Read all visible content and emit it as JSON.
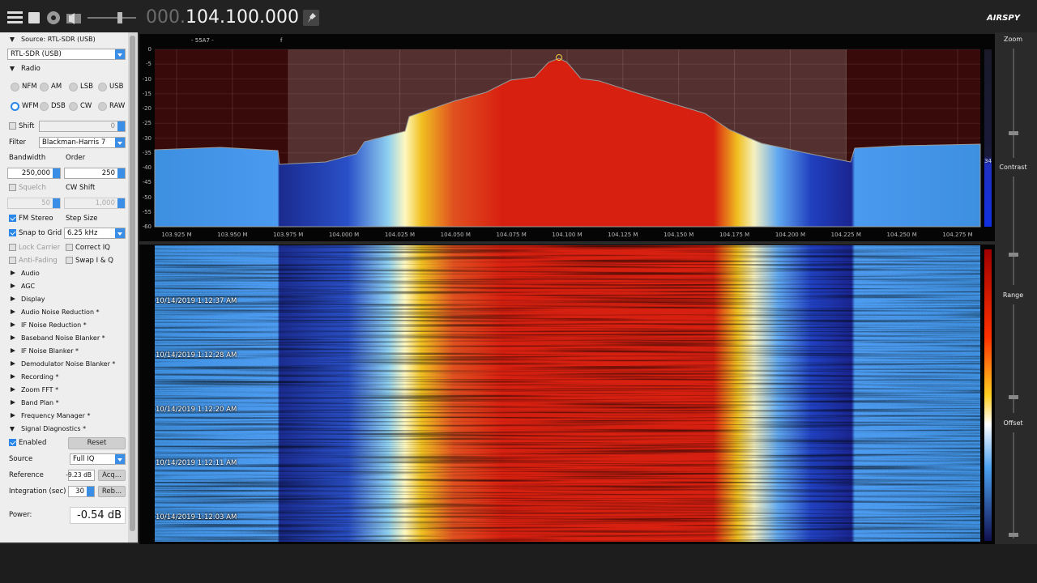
{
  "toolbar": {
    "freq_prefix": "000.",
    "freq": "104.100.000",
    "logo": "AIRSPY"
  },
  "sidebar": {
    "source_header": "Source: RTL-SDR (USB)",
    "source_select": "RTL-SDR (USB)",
    "radio_header": "Radio",
    "modes": [
      "NFM",
      "AM",
      "LSB",
      "USB",
      "WFM",
      "DSB",
      "CW",
      "RAW"
    ],
    "shift": "Shift",
    "shift_value": "0",
    "filter_label": "Filter",
    "filter": "Blackman-Harris 7",
    "bandwidth_label": "Bandwidth",
    "order_label": "Order",
    "bandwidth": "250,000",
    "order": "250",
    "squelch": "Squelch",
    "cw_shift": "CW Shift",
    "squelch_value": "50",
    "cw_shift_value": "1,000",
    "fm_stereo": "FM Stereo",
    "step_size": "Step Size",
    "snap": "Snap to Grid",
    "step": "6.25 kHz",
    "lock_carrier": "Lock Carrier",
    "correct_iq": "Correct IQ",
    "anti_fading": "Anti-Fading",
    "swap_iq": "Swap I & Q",
    "sections": [
      "Audio",
      "AGC",
      "Display",
      "Audio Noise Reduction *",
      "IF Noise Reduction *",
      "Baseband Noise Blanker *",
      "IF Noise Blanker *",
      "Demodulator Noise Blanker *",
      "Recording *",
      "Zoom FFT *",
      "Band Plan *",
      "Frequency Manager *"
    ],
    "diag_header": "Signal Diagnostics *",
    "enabled": "Enabled",
    "reset": "Reset",
    "source_label": "Source",
    "source_value": "Full IQ",
    "reference_label": "Reference",
    "reference_value": "-9.23 dB",
    "acquire": "Acq...",
    "integration_label": "Integration (sec)",
    "integration_value": "30",
    "rebase": "Reb...",
    "power_label": "Power:",
    "power": "-0.54 dB"
  },
  "spectrum": {
    "marker": "- 55A7 -",
    "marker_f": "f",
    "db_ticks": [
      "0",
      "-5",
      "-10",
      "-15",
      "-20",
      "-25",
      "-30",
      "-35",
      "-40",
      "-45",
      "-50",
      "-55",
      "-60"
    ],
    "freq_ticks": [
      "103.925 M",
      "103.950 M",
      "103.975 M",
      "104.000 M",
      "104.025 M",
      "104.050 M",
      "104.075 M",
      "104.100 M",
      "104.125 M",
      "104.150 M",
      "104.175 M",
      "104.200 M",
      "104.225 M",
      "104.250 M",
      "104.275 M"
    ],
    "side_value": "34"
  },
  "waterfall": {
    "timestamps": [
      "10/14/2019 1:12:37 AM",
      "10/14/2019 1:12:28 AM",
      "10/14/2019 1:12:20 AM",
      "10/14/2019 1:12:11 AM",
      "10/14/2019 1:12:03 AM"
    ]
  },
  "right_panel": {
    "zoom": "Zoom",
    "contrast": "Contrast",
    "range": "Range",
    "offset": "Offset"
  }
}
